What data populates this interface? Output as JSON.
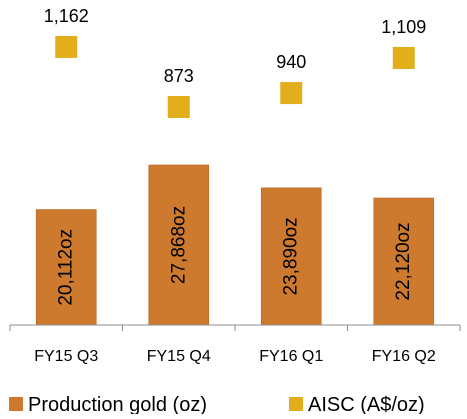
{
  "chart_data": {
    "type": "bar",
    "categories": [
      "FY15 Q3",
      "FY15 Q4",
      "FY16 Q1",
      "FY16 Q2"
    ],
    "series": [
      {
        "name": "Production gold (oz)",
        "kind": "bar",
        "values": [
          20112,
          27868,
          23890,
          22120
        ],
        "labels": [
          "20,112oz",
          "27,868oz",
          "23,890oz",
          "22,120oz"
        ],
        "color": "#CD7A2E"
      },
      {
        "name": "AISC (A$/oz)",
        "kind": "marker",
        "values": [
          1162,
          873,
          940,
          1109
        ],
        "labels": [
          "1,162",
          "873",
          "940",
          "1,109"
        ],
        "color": "#E2AE1C"
      }
    ],
    "legend_position": "bottom",
    "grid": false
  }
}
